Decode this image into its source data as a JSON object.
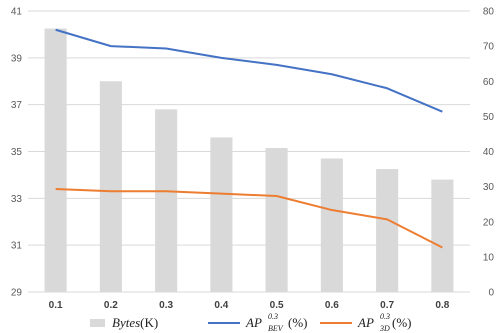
{
  "chart_data": {
    "type": "bar",
    "categories": [
      "0.1",
      "0.2",
      "0.3",
      "0.4",
      "0.5",
      "0.6",
      "0.7",
      "0.8"
    ],
    "left_axis": {
      "ylim": [
        29,
        41
      ],
      "ticks": [
        "29",
        "31",
        "33",
        "35",
        "37",
        "39",
        "41"
      ]
    },
    "right_axis": {
      "ylim": [
        0,
        80
      ],
      "ticks": [
        "0",
        "10",
        "20",
        "30",
        "40",
        "50",
        "60",
        "70",
        "80"
      ]
    },
    "series": [
      {
        "name": "Bytes(K)",
        "kind": "bar",
        "axis": "right",
        "color": "#d9d9d9",
        "values": [
          75,
          60,
          52,
          44,
          41,
          38,
          35,
          32
        ]
      },
      {
        "name": "AP_BEV^0.3(%)",
        "kind": "line",
        "axis": "left",
        "color": "#4472c4",
        "values": [
          40.2,
          39.5,
          39.4,
          39.0,
          38.7,
          38.3,
          37.7,
          36.7
        ]
      },
      {
        "name": "AP_3D^0.3(%)",
        "kind": "line",
        "axis": "left",
        "color": "#ed7d31",
        "values": [
          33.4,
          33.3,
          33.3,
          33.2,
          33.1,
          32.5,
          32.1,
          30.9
        ]
      }
    ],
    "grid": true,
    "legend": {
      "position": "bottom",
      "bytes": {
        "base": "Bytes",
        "tail": "(K)"
      },
      "bev": {
        "base": "AP",
        "sup": "0.3",
        "sub": "BEV",
        "tail": "(%)"
      },
      "threeD": {
        "base": "AP",
        "sup": "0.3",
        "sub": "3D",
        "tail": "(%)"
      }
    }
  }
}
